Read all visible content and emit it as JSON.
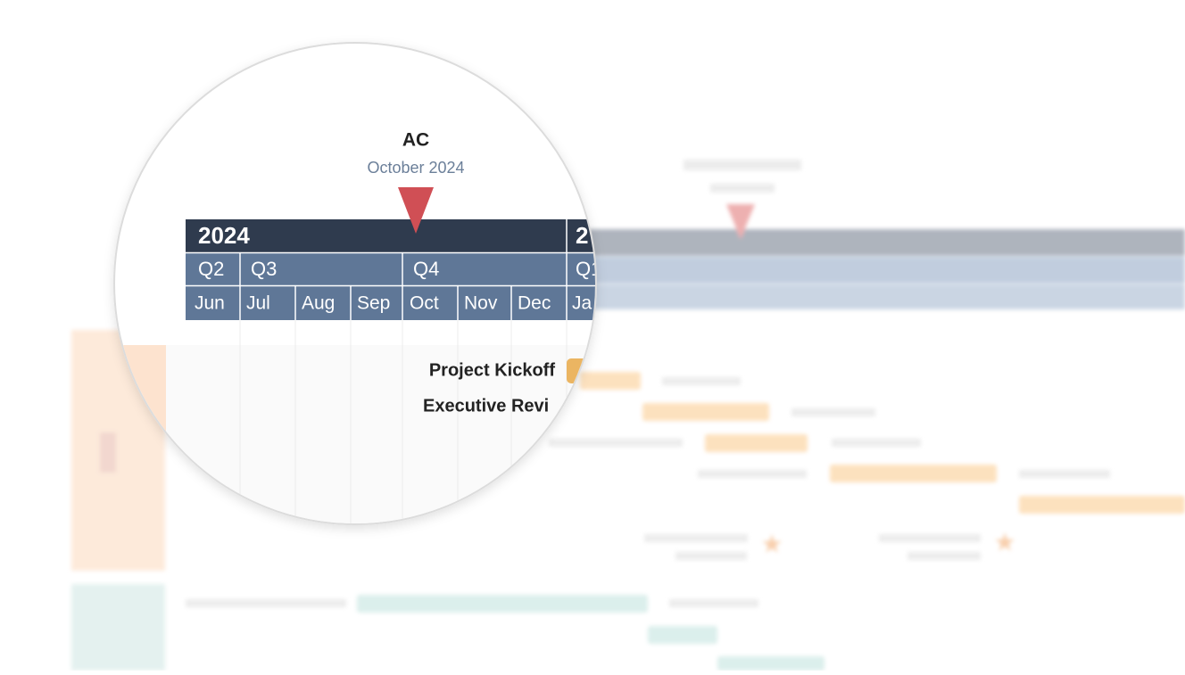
{
  "marker": {
    "label": "AC",
    "date": "October 2024"
  },
  "timeline": {
    "years": [
      "2024",
      "2"
    ],
    "quarters": [
      "Q2",
      "Q3",
      "Q4",
      "Q1"
    ],
    "months": [
      "Jun",
      "Jul",
      "Aug",
      "Sep",
      "Oct",
      "Nov",
      "Dec",
      "Ja"
    ]
  },
  "tasks": [
    "Project Kickoff",
    "Executive Revi"
  ]
}
